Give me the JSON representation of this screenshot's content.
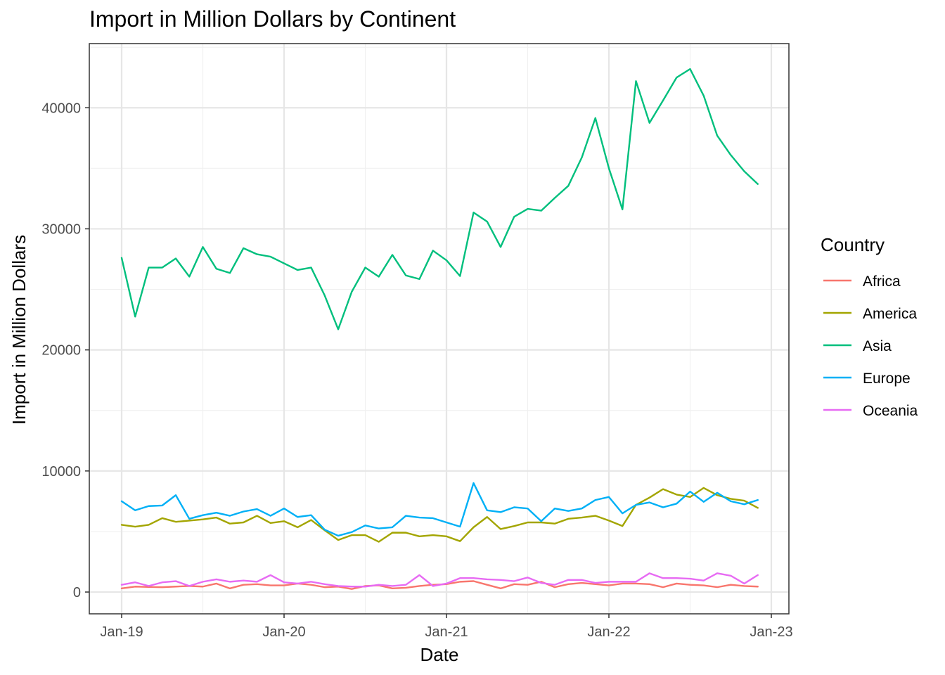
{
  "chart_data": {
    "type": "line",
    "title": "Import in Million Dollars by Continent",
    "xlabel": "Date",
    "ylabel": "Import in Million Dollars",
    "x_start": "2019-01",
    "x_interval": "monthly",
    "x_ticks": [
      "Jan-19",
      "Jan-20",
      "Jan-21",
      "Jan-22",
      "Jan-23"
    ],
    "y_ticks": [
      0,
      10000,
      20000,
      30000,
      40000
    ],
    "ylim": [
      -1800,
      45300
    ],
    "legend": {
      "title": "Country",
      "position": "right"
    },
    "series": [
      {
        "name": "Africa",
        "color": "#F8766D",
        "values": [
          300,
          450,
          420,
          400,
          450,
          500,
          450,
          700,
          300,
          600,
          650,
          550,
          550,
          700,
          600,
          400,
          450,
          250,
          500,
          550,
          300,
          350,
          500,
          600,
          650,
          850,
          900,
          600,
          300,
          650,
          600,
          850,
          400,
          650,
          750,
          650,
          550,
          700,
          700,
          650,
          400,
          700,
          600,
          550,
          400,
          600,
          500,
          450
        ]
      },
      {
        "name": "America",
        "color": "#A3A500",
        "values": [
          5550,
          5400,
          5550,
          6100,
          5800,
          5900,
          6000,
          6150,
          5650,
          5750,
          6300,
          5700,
          5850,
          5350,
          5950,
          5100,
          4300,
          4700,
          4700,
          4150,
          4900,
          4900,
          4600,
          4700,
          4600,
          4200,
          5350,
          6200,
          5200,
          5450,
          5750,
          5750,
          5650,
          6050,
          6150,
          6300,
          5900,
          5450,
          7200,
          7800,
          8500,
          8050,
          7850,
          8600,
          8000,
          7700,
          7550,
          6950
        ]
      },
      {
        "name": "Asia",
        "color": "#00BF7D",
        "values": [
          27600,
          22750,
          26800,
          26800,
          27550,
          26050,
          28500,
          26700,
          26350,
          28400,
          27900,
          27700,
          27150,
          26600,
          26800,
          24500,
          21700,
          24800,
          26800,
          26050,
          27850,
          26150,
          25850,
          28200,
          27400,
          26100,
          31350,
          30600,
          28500,
          31000,
          31650,
          31500,
          32550,
          33550,
          35900,
          39150,
          35000,
          31600,
          42200,
          38750,
          40600,
          42500,
          43200,
          41000,
          37700,
          36100,
          34750,
          33700
        ]
      },
      {
        "name": "Europe",
        "color": "#00B0F6",
        "values": [
          7500,
          6750,
          7100,
          7150,
          8000,
          6050,
          6350,
          6550,
          6300,
          6650,
          6850,
          6300,
          6900,
          6200,
          6350,
          5150,
          4650,
          4950,
          5500,
          5250,
          5350,
          6300,
          6150,
          6100,
          5750,
          5400,
          9000,
          6750,
          6600,
          7000,
          6900,
          5850,
          6900,
          6700,
          6900,
          7600,
          7850,
          6500,
          7200,
          7400,
          7000,
          7300,
          8300,
          7450,
          8200,
          7500,
          7250,
          7600
        ]
      },
      {
        "name": "Oceania",
        "color": "#E76BF3",
        "values": [
          600,
          800,
          500,
          800,
          900,
          500,
          850,
          1050,
          850,
          950,
          850,
          1400,
          800,
          700,
          850,
          650,
          500,
          450,
          450,
          600,
          500,
          600,
          1400,
          500,
          700,
          1150,
          1150,
          1050,
          1000,
          900,
          1200,
          750,
          600,
          1000,
          1000,
          750,
          850,
          850,
          850,
          1550,
          1150,
          1150,
          1100,
          950,
          1550,
          1350,
          700,
          1400
        ]
      }
    ]
  }
}
